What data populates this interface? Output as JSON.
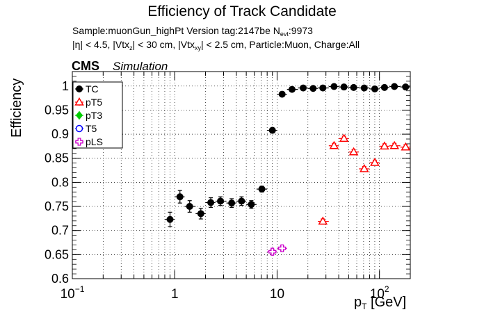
{
  "title": "Efficiency of Track Candidate",
  "subtitle": {
    "line1_prefix": "Sample:muonGun_highPt   Version tag:2147be  N",
    "line1_sub": "evt",
    "line1_suffix": ":9973",
    "line2_p1": "|η| < 4.5, |Vtx",
    "line2_s1": "z",
    "line2_p2": "| < 30 cm, |Vtx",
    "line2_s2": "xy",
    "line2_p3": "| < 2.5 cm, Particle:Muon, Charge:All"
  },
  "cms_label": "CMS",
  "simulation_label": "Simulation",
  "ylabel": "Efficiency",
  "xlabel": {
    "main": "p",
    "sub": "T",
    "unit": " [GeV]"
  },
  "chart_data": {
    "type": "scatter",
    "x_scale": "log",
    "xlim": [
      0.1,
      200
    ],
    "ylim": [
      0.6,
      1.03
    ],
    "grid": true,
    "legend_placement": "top-left",
    "x_ticks": [
      {
        "value": 0.1,
        "base": "10",
        "exp": "−1"
      },
      {
        "value": 1,
        "base": "1",
        "exp": ""
      },
      {
        "value": 10,
        "base": "10",
        "exp": ""
      },
      {
        "value": 100,
        "base": "10",
        "exp": "2"
      }
    ],
    "y_ticks": [
      {
        "value": 0.6,
        "label": "0.6"
      },
      {
        "value": 0.65,
        "label": "0.65"
      },
      {
        "value": 0.7,
        "label": "0.7"
      },
      {
        "value": 0.75,
        "label": "0.75"
      },
      {
        "value": 0.8,
        "label": "0.8"
      },
      {
        "value": 0.85,
        "label": "0.85"
      },
      {
        "value": 0.9,
        "label": "0.9"
      },
      {
        "value": 0.95,
        "label": "0.95"
      },
      {
        "value": 1.0,
        "label": "1"
      }
    ],
    "series": [
      {
        "name": "TC",
        "color": "#000000",
        "marker": "filled-circle",
        "points": [
          {
            "x": 0.9,
            "xlo": 0.8,
            "xhi": 1.0,
            "y": 0.723,
            "err": 0.015
          },
          {
            "x": 1.125,
            "xlo": 1.0,
            "xhi": 1.25,
            "y": 0.77,
            "err": 0.013
          },
          {
            "x": 1.4,
            "xlo": 1.25,
            "xhi": 1.6,
            "y": 0.75,
            "err": 0.012
          },
          {
            "x": 1.8,
            "xlo": 1.6,
            "xhi": 2.0,
            "y": 0.735,
            "err": 0.011
          },
          {
            "x": 2.25,
            "xlo": 2.0,
            "xhi": 2.5,
            "y": 0.758,
            "err": 0.01
          },
          {
            "x": 2.8,
            "xlo": 2.5,
            "xhi": 3.2,
            "y": 0.761,
            "err": 0.009
          },
          {
            "x": 3.6,
            "xlo": 3.2,
            "xhi": 4.0,
            "y": 0.757,
            "err": 0.009
          },
          {
            "x": 4.5,
            "xlo": 4.0,
            "xhi": 5.0,
            "y": 0.761,
            "err": 0.009
          },
          {
            "x": 5.6,
            "xlo": 5.0,
            "xhi": 6.3,
            "y": 0.754,
            "err": 0.008
          },
          {
            "x": 7.1,
            "xlo": 6.3,
            "xhi": 8.0,
            "y": 0.786,
            "err": 0.006
          },
          {
            "x": 9.0,
            "xlo": 8.0,
            "xhi": 10.0,
            "y": 0.908,
            "err": 0.005
          },
          {
            "x": 11.2,
            "xlo": 10.0,
            "xhi": 12.5,
            "y": 0.983,
            "err": 0.004
          },
          {
            "x": 14.0,
            "xlo": 12.5,
            "xhi": 16.0,
            "y": 0.993,
            "err": 0.003
          },
          {
            "x": 18.0,
            "xlo": 16.0,
            "xhi": 20.0,
            "y": 0.996,
            "err": 0.003
          },
          {
            "x": 22.5,
            "xlo": 20.0,
            "xhi": 25.0,
            "y": 0.995,
            "err": 0.003
          },
          {
            "x": 28.0,
            "xlo": 25.0,
            "xhi": 32.0,
            "y": 0.996,
            "err": 0.003
          },
          {
            "x": 36.0,
            "xlo": 32.0,
            "xhi": 40.0,
            "y": 0.999,
            "err": 0.003
          },
          {
            "x": 45.0,
            "xlo": 40.0,
            "xhi": 50.0,
            "y": 0.998,
            "err": 0.003
          },
          {
            "x": 56.0,
            "xlo": 50.0,
            "xhi": 63.0,
            "y": 0.997,
            "err": 0.003
          },
          {
            "x": 71.0,
            "xlo": 63.0,
            "xhi": 80.0,
            "y": 0.996,
            "err": 0.003
          },
          {
            "x": 90.0,
            "xlo": 80.0,
            "xhi": 100.0,
            "y": 0.994,
            "err": 0.003
          },
          {
            "x": 112.0,
            "xlo": 100.0,
            "xhi": 125.0,
            "y": 0.997,
            "err": 0.003
          },
          {
            "x": 140.0,
            "xlo": 125.0,
            "xhi": 160.0,
            "y": 0.999,
            "err": 0.003
          },
          {
            "x": 180.0,
            "xlo": 160.0,
            "xhi": 200.0,
            "y": 0.998,
            "err": 0.003
          }
        ]
      },
      {
        "name": "pT5",
        "color": "#ff0000",
        "marker": "open-triangle",
        "points": [
          {
            "x": 28.0,
            "xlo": 25.0,
            "xhi": 32.0,
            "y": 0.719,
            "err": 0.005
          },
          {
            "x": 36.0,
            "xlo": 32.0,
            "xhi": 40.0,
            "y": 0.876,
            "err": 0.005
          },
          {
            "x": 45.0,
            "xlo": 40.0,
            "xhi": 50.0,
            "y": 0.891,
            "err": 0.005
          },
          {
            "x": 56.0,
            "xlo": 50.0,
            "xhi": 63.0,
            "y": 0.863,
            "err": 0.005
          },
          {
            "x": 71.0,
            "xlo": 63.0,
            "xhi": 80.0,
            "y": 0.828,
            "err": 0.005
          },
          {
            "x": 90.0,
            "xlo": 80.0,
            "xhi": 100.0,
            "y": 0.841,
            "err": 0.005
          },
          {
            "x": 112.0,
            "xlo": 100.0,
            "xhi": 125.0,
            "y": 0.875,
            "err": 0.005
          },
          {
            "x": 140.0,
            "xlo": 125.0,
            "xhi": 160.0,
            "y": 0.876,
            "err": 0.005
          },
          {
            "x": 180.0,
            "xlo": 160.0,
            "xhi": 200.0,
            "y": 0.873,
            "err": 0.005
          }
        ]
      },
      {
        "name": "pT3",
        "color": "#00cc00",
        "marker": "filled-diamond",
        "points": []
      },
      {
        "name": "T5",
        "color": "#0000ff",
        "marker": "open-circle",
        "points": []
      },
      {
        "name": "pLS",
        "color": "#cc00cc",
        "marker": "open-cross",
        "points": [
          {
            "x": 9.0,
            "xlo": 8.0,
            "xhi": 10.0,
            "y": 0.656,
            "err": 0.005
          },
          {
            "x": 11.2,
            "xlo": 10.0,
            "xhi": 12.5,
            "y": 0.663,
            "err": 0.005
          }
        ]
      }
    ]
  }
}
